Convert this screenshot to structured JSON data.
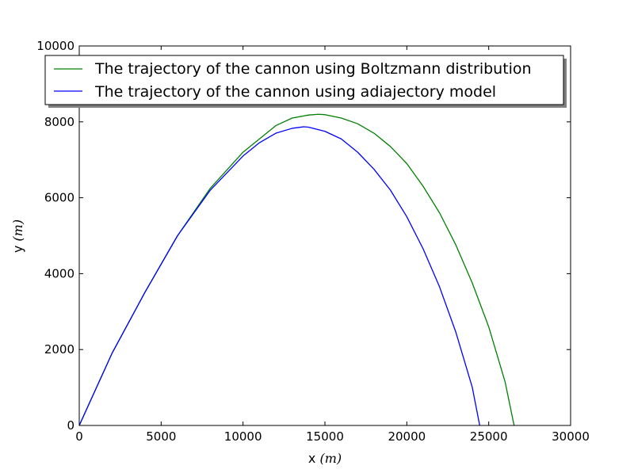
{
  "chart_data": {
    "type": "line",
    "title": "",
    "xlabel": "x",
    "xlabel_unit": "m",
    "ylabel": "y",
    "ylabel_unit": "m",
    "xlim": [
      0,
      30000
    ],
    "ylim": [
      0,
      10000
    ],
    "xticks": [
      0,
      5000,
      10000,
      15000,
      20000,
      25000,
      30000
    ],
    "yticks": [
      0,
      2000,
      4000,
      6000,
      8000,
      10000
    ],
    "grid": false,
    "legend_position": "top-left",
    "series": [
      {
        "name": "The trajectory of the cannon using Boltzmann distribution",
        "color": "#008000",
        "x": [
          0,
          2000,
          4000,
          6000,
          8000,
          10000,
          12000,
          13000,
          14000,
          14600,
          15000,
          16000,
          17000,
          18000,
          19000,
          20000,
          21000,
          22000,
          23000,
          24000,
          25000,
          26000,
          26550
        ],
        "y": [
          0,
          1900,
          3500,
          5000,
          6250,
          7200,
          7900,
          8100,
          8180,
          8200,
          8190,
          8100,
          7950,
          7700,
          7350,
          6900,
          6300,
          5600,
          4750,
          3750,
          2600,
          1150,
          0
        ]
      },
      {
        "name": "The trajectory of the cannon using adiajectory model",
        "color": "#0000ff",
        "x": [
          0,
          2000,
          4000,
          6000,
          8000,
          10000,
          11000,
          12000,
          13000,
          13700,
          14000,
          15000,
          16000,
          17000,
          18000,
          19000,
          20000,
          21000,
          22000,
          23000,
          24000,
          24450
        ],
        "y": [
          0,
          1900,
          3500,
          5000,
          6200,
          7100,
          7450,
          7700,
          7830,
          7870,
          7860,
          7750,
          7550,
          7200,
          6750,
          6200,
          5500,
          4650,
          3650,
          2450,
          1000,
          0
        ]
      }
    ]
  }
}
